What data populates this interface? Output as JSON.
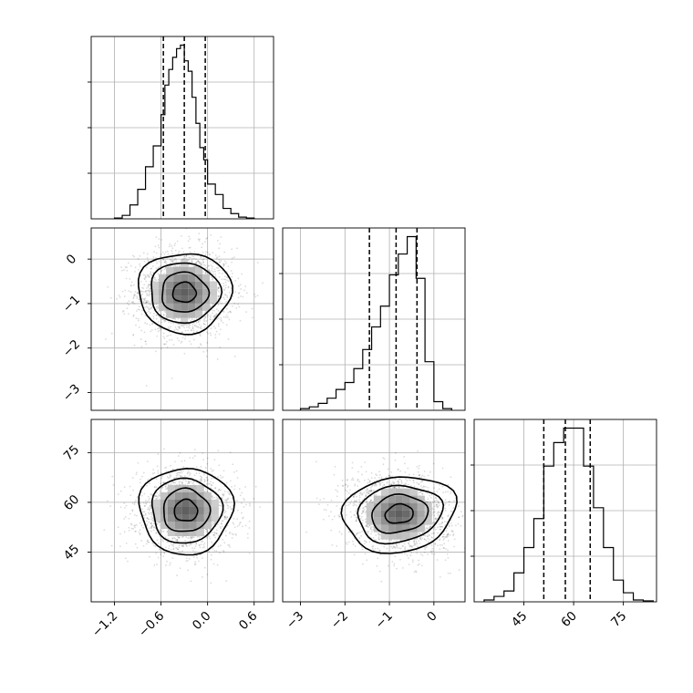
{
  "chart_data": {
    "type": "corner",
    "title": "",
    "grid": true,
    "parameters": [
      {
        "xlim": [
          -1.5,
          0.85
        ],
        "ticks": [
          -1.2,
          -0.6,
          0.0,
          0.6
        ],
        "tick_labels": [
          "−1.2",
          "−0.6",
          "0.0",
          "0.6"
        ],
        "quantiles": [
          -0.57,
          -0.3,
          -0.03
        ],
        "histogram": {
          "bin_edges": [
            -1.2,
            -1.1,
            -1.0,
            -0.9,
            -0.8,
            -0.7,
            -0.6,
            -0.55,
            -0.5,
            -0.45,
            -0.4,
            -0.35,
            -0.3,
            -0.25,
            -0.2,
            -0.15,
            -0.1,
            -0.05,
            0.0,
            0.1,
            0.2,
            0.3,
            0.4,
            0.5,
            0.6
          ],
          "counts": [
            0.005,
            0.02,
            0.08,
            0.17,
            0.3,
            0.42,
            0.6,
            0.77,
            0.86,
            0.93,
            0.98,
            1.0,
            0.91,
            0.85,
            0.7,
            0.55,
            0.41,
            0.34,
            0.2,
            0.14,
            0.06,
            0.03,
            0.01,
            0.005
          ]
        }
      },
      {
        "xlim": [
          -3.4,
          0.7
        ],
        "ticks": [
          -3,
          -2,
          -1,
          0
        ],
        "tick_labels": [
          "−3",
          "−2",
          "−1",
          "0"
        ],
        "quantiles": [
          -1.45,
          -0.85,
          -0.38
        ],
        "histogram": {
          "bin_edges": [
            -3.0,
            -2.8,
            -2.6,
            -2.4,
            -2.2,
            -2.0,
            -1.8,
            -1.6,
            -1.4,
            -1.2,
            -1.0,
            -0.8,
            -0.6,
            -0.4,
            -0.2,
            0.0,
            0.2,
            0.4
          ],
          "counts": [
            0.01,
            0.02,
            0.04,
            0.07,
            0.12,
            0.16,
            0.24,
            0.35,
            0.48,
            0.6,
            0.78,
            0.9,
            1.0,
            0.76,
            0.28,
            0.05,
            0.01
          ]
        }
      },
      {
        "xlim": [
          30,
          85
        ],
        "ticks": [
          45,
          60,
          75
        ],
        "tick_labels": [
          "45",
          "60",
          "75"
        ],
        "quantiles": [
          51,
          57.5,
          65
        ],
        "histogram": {
          "bin_edges": [
            33,
            36,
            39,
            42,
            45,
            48,
            51,
            54,
            57,
            60,
            63,
            66,
            69,
            72,
            75,
            78,
            81,
            84
          ],
          "counts": [
            0.01,
            0.03,
            0.06,
            0.16,
            0.3,
            0.46,
            0.75,
            0.88,
            0.96,
            0.96,
            0.75,
            0.52,
            0.3,
            0.12,
            0.05,
            0.01,
            0.005
          ]
        }
      }
    ],
    "joint_panels": [
      {
        "row": 1,
        "col": 0,
        "center": [
          -0.3,
          -0.75
        ],
        "spread": [
          0.3,
          0.5
        ],
        "correlation": 0.0,
        "contour_scale": [
          1.0,
          0.9
        ]
      },
      {
        "row": 2,
        "col": 0,
        "center": [
          -0.28,
          57.5
        ],
        "spread": [
          0.3,
          6.2
        ],
        "correlation": 0.0,
        "contour_scale": [
          1.0,
          1.05
        ]
      },
      {
        "row": 2,
        "col": 1,
        "center": [
          -0.78,
          56.5
        ],
        "spread": [
          0.55,
          6.0
        ],
        "correlation": -0.15,
        "contour_scale": [
          1.15,
          0.95
        ]
      }
    ],
    "contour_levels": [
      0.5,
      1.0,
      1.5,
      2.0
    ]
  }
}
